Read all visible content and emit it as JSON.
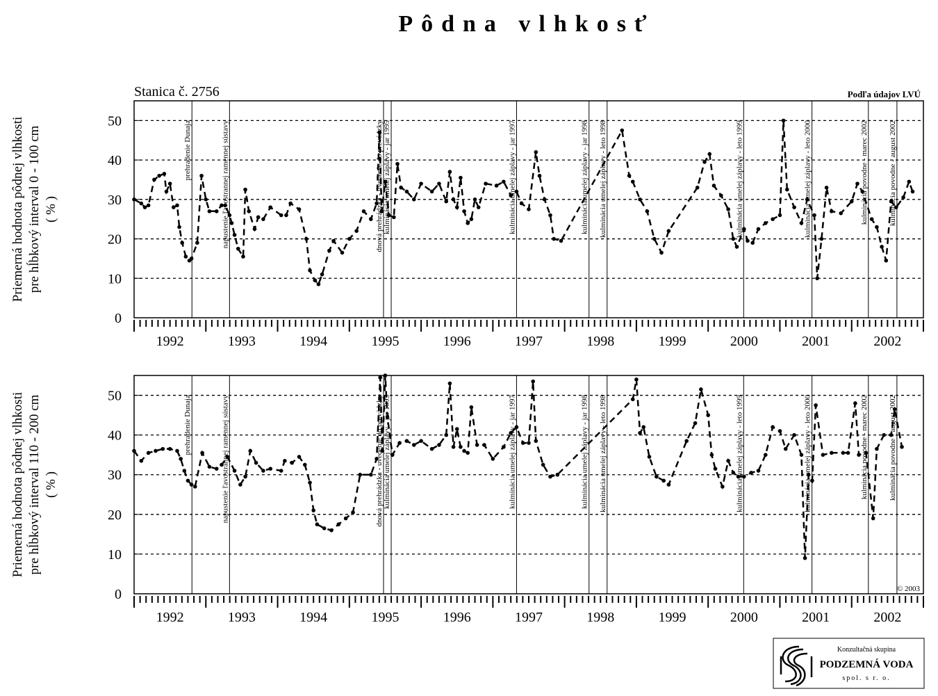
{
  "title": "Pôdna vlhkosť",
  "station": "Stanica č. 2756",
  "source": "Podľa údajov LVÚ",
  "copyright": "© 2003",
  "logo": {
    "line1": "Konzultačná skupina",
    "line2": "PODZEMNÁ VODA",
    "line3": "spol. s r. o."
  },
  "chart_data": [
    {
      "type": "line",
      "ylabel": [
        "Priemerná hodnota pôdnej vlhkosti",
        "pre hĺbkový interval 0 - 100 cm",
        "( % )"
      ],
      "xlim": [
        1992,
        2003
      ],
      "ylim": [
        0,
        55
      ],
      "yticks": [
        0,
        10,
        20,
        30,
        40,
        50
      ],
      "grid": true,
      "xticks": [
        {
          "value": 1992.5,
          "label": "1992"
        },
        {
          "value": 1993.5,
          "label": "1993"
        },
        {
          "value": 1994.5,
          "label": "1994"
        },
        {
          "value": 1995.5,
          "label": "1995"
        },
        {
          "value": 1996.5,
          "label": "1996"
        },
        {
          "value": 1997.5,
          "label": "1997"
        },
        {
          "value": 1998.5,
          "label": "1998"
        },
        {
          "value": 1999.5,
          "label": "1999"
        },
        {
          "value": 2000.5,
          "label": "2000"
        },
        {
          "value": 2001.5,
          "label": "2001"
        },
        {
          "value": 2002.5,
          "label": "2002"
        }
      ],
      "events": [
        {
          "x": 1992.806,
          "label": "prehradenie Dunaja"
        },
        {
          "x": 1993.33,
          "label": "napustenie ľavostrannej ramennej sústavy"
        },
        {
          "x": 1995.476,
          "label": "dnová prehrádzka - uvedenie do prevádzky"
        },
        {
          "x": 1995.583,
          "label": "kulminácia umelej záplavy - jar 1995"
        },
        {
          "x": 1997.33,
          "label": "kulminácia umelej záplavy - jar 1997"
        },
        {
          "x": 1998.34,
          "label": "kulminácia umelej záplavy - jar 1998"
        },
        {
          "x": 1998.592,
          "label": "kulminácia umelej záplavy - leto 1998"
        },
        {
          "x": 2000.495,
          "label": "kulminácia umelej záplavy - leto 1999"
        },
        {
          "x": 2001.447,
          "label": "kulminácia umelej záplavy - leto 2000"
        },
        {
          "x": 2002.233,
          "label": "kulminácia povodne - marec 2002"
        },
        {
          "x": 2002.631,
          "label": "kulminácia povodne - august 2002"
        }
      ],
      "series": [
        {
          "color": "#000000",
          "x": [
            1992.0,
            1992.1,
            1992.15,
            1992.2,
            1992.28,
            1992.35,
            1992.42,
            1992.45,
            1992.5,
            1992.55,
            1992.6,
            1992.63,
            1992.67,
            1992.72,
            1992.77,
            1992.8,
            1992.88,
            1992.94,
            1993.0,
            1993.05,
            1993.15,
            1993.22,
            1993.27,
            1993.33,
            1993.36,
            1993.4,
            1993.45,
            1993.52,
            1993.55,
            1993.6,
            1993.68,
            1993.73,
            1993.8,
            1993.9,
            1994.05,
            1994.12,
            1994.18,
            1994.3,
            1994.4,
            1994.45,
            1994.52,
            1994.57,
            1994.62,
            1994.72,
            1994.78,
            1994.9,
            1995.0,
            1995.1,
            1995.2,
            1995.3,
            1995.38,
            1995.42,
            1995.45,
            1995.5,
            1995.55,
            1995.62,
            1995.67,
            1995.72,
            1995.8,
            1995.9,
            1996.0,
            1996.15,
            1996.25,
            1996.35,
            1996.4,
            1996.45,
            1996.5,
            1996.55,
            1996.6,
            1996.65,
            1996.7,
            1996.75,
            1996.8,
            1996.9,
            1997.05,
            1997.15,
            1997.25,
            1997.33,
            1997.4,
            1997.5,
            1997.6,
            1997.65,
            1997.72,
            1997.8,
            1997.85,
            1997.95,
            1998.8,
            1998.9,
            1998.95,
            1999.05,
            1999.15,
            1999.25,
            1999.35,
            1999.45,
            1999.85,
            1999.95,
            2000.02,
            2000.08,
            2000.18,
            2000.28,
            2000.35,
            2000.4,
            2000.5,
            2000.55,
            2000.62,
            2000.7,
            2000.8,
            2000.9,
            2001.0,
            2001.05,
            2001.1,
            2001.2,
            2001.3,
            2001.38,
            2001.48,
            2001.52,
            2001.58,
            2001.65,
            2001.72,
            2001.85,
            2002.0,
            2002.08,
            2002.15,
            2002.28,
            2002.35,
            2002.42,
            2002.48,
            2002.55,
            2002.62,
            2002.72,
            2002.8,
            2002.85
          ],
          "values": [
            30,
            29,
            28,
            28.5,
            35,
            36,
            36.5,
            32,
            34,
            28,
            28.5,
            23,
            19,
            15.5,
            14.5,
            15,
            19,
            36,
            30,
            27,
            27,
            28.5,
            28.5,
            26,
            24,
            21,
            17.5,
            15.5,
            32.5,
            27,
            22.5,
            25.5,
            25,
            28,
            26,
            26,
            29,
            27.5,
            20,
            12,
            9.5,
            8.5,
            11,
            17,
            19.5,
            16.5,
            20,
            22,
            27,
            25,
            29,
            47,
            27,
            34.5,
            26,
            25.5,
            39,
            33,
            32,
            30,
            34,
            32,
            34,
            29.5,
            37,
            30,
            28,
            35.5,
            27,
            24,
            25,
            30,
            28,
            34,
            33.5,
            34.5,
            31,
            32,
            29,
            27.5,
            42,
            36,
            30,
            26,
            20,
            19.5,
            47.5,
            36,
            34.5,
            30,
            27,
            20,
            16.5,
            22,
            33,
            39.5,
            41.5,
            33.5,
            31,
            27.5,
            20,
            18,
            22.5,
            19.5,
            19,
            22.5,
            24,
            25,
            26,
            50,
            32.5,
            28,
            24,
            30,
            26,
            10,
            20,
            33,
            27,
            26.5,
            29.5,
            34,
            32,
            25,
            23,
            18,
            14.5,
            29.5,
            28,
            30.5,
            34.5,
            32
          ]
        }
      ]
    },
    {
      "type": "line",
      "ylabel": [
        "Priemerná hodnota pôdnej vlhkosti",
        "pre hĺbkový interval 110 - 200 cm",
        "( % )"
      ],
      "xlim": [
        1992,
        2003
      ],
      "ylim": [
        0,
        55
      ],
      "yticks": [
        0,
        10,
        20,
        30,
        40,
        50
      ],
      "grid": true,
      "xticks": [
        {
          "value": 1992.5,
          "label": "1992"
        },
        {
          "value": 1993.5,
          "label": "1993"
        },
        {
          "value": 1994.5,
          "label": "1994"
        },
        {
          "value": 1995.5,
          "label": "1995"
        },
        {
          "value": 1996.5,
          "label": "1996"
        },
        {
          "value": 1997.5,
          "label": "1997"
        },
        {
          "value": 1998.5,
          "label": "1998"
        },
        {
          "value": 1999.5,
          "label": "1999"
        },
        {
          "value": 2000.5,
          "label": "2000"
        },
        {
          "value": 2001.5,
          "label": "2001"
        },
        {
          "value": 2002.5,
          "label": "2002"
        }
      ],
      "events": [
        {
          "x": 1992.806,
          "label": "prehradenie Dunaja"
        },
        {
          "x": 1993.33,
          "label": "napustenie ľavostrannej ramennej sústavy"
        },
        {
          "x": 1995.476,
          "label": "dnová prehrádzka - uvedenie do prevádzky"
        },
        {
          "x": 1995.583,
          "label": "kulminácia umelej záplavy - jar 1995"
        },
        {
          "x": 1997.33,
          "label": "kulminácia umelej záplavy - jar 1997"
        },
        {
          "x": 1998.34,
          "label": "kulminácia umelej záplavy - jar 1998"
        },
        {
          "x": 1998.592,
          "label": "kulminácia umelej záplavy - leto 1998"
        },
        {
          "x": 2000.495,
          "label": "kulminácia umelej záplavy - leto 1999"
        },
        {
          "x": 2001.447,
          "label": "kulminácia umelej záplavy - leto 2000"
        },
        {
          "x": 2002.233,
          "label": "kulminácia povodne - marec 2002"
        },
        {
          "x": 2002.631,
          "label": "kulminácia povodne - august 2002"
        }
      ],
      "series": [
        {
          "color": "#000000",
          "x": [
            1992.0,
            1992.1,
            1992.2,
            1992.3,
            1992.4,
            1992.5,
            1992.6,
            1992.65,
            1992.7,
            1992.75,
            1992.8,
            1992.85,
            1992.95,
            1993.05,
            1993.15,
            1993.22,
            1993.3,
            1993.4,
            1993.48,
            1993.55,
            1993.62,
            1993.7,
            1993.8,
            1993.9,
            1994.05,
            1994.1,
            1994.2,
            1994.3,
            1994.38,
            1994.45,
            1994.5,
            1994.55,
            1994.65,
            1994.75,
            1994.85,
            1994.95,
            1995.05,
            1995.15,
            1995.3,
            1995.38,
            1995.43,
            1995.46,
            1995.5,
            1995.53,
            1995.6,
            1995.7,
            1995.8,
            1995.9,
            1996.0,
            1996.15,
            1996.25,
            1996.35,
            1996.4,
            1996.45,
            1996.5,
            1996.55,
            1996.6,
            1996.65,
            1996.7,
            1996.78,
            1996.88,
            1997.0,
            1997.15,
            1997.25,
            1997.33,
            1997.42,
            1997.5,
            1997.56,
            1997.6,
            1997.7,
            1997.8,
            1997.9,
            1998.95,
            1999.0,
            1999.05,
            1999.1,
            1999.18,
            1999.28,
            1999.38,
            1999.45,
            1999.7,
            1999.82,
            1999.9,
            2000.0,
            2000.05,
            2000.1,
            2000.2,
            2000.28,
            2000.35,
            2000.42,
            2000.5,
            2000.6,
            2000.7,
            2000.8,
            2000.9,
            2001.0,
            2001.08,
            2001.2,
            2001.3,
            2001.35,
            2001.4,
            2001.45,
            2001.5,
            2001.6,
            2001.72,
            2001.88,
            2001.95,
            2002.05,
            2002.1,
            2002.2,
            2002.3,
            2002.35,
            2002.45,
            2002.55,
            2002.6,
            2002.7
          ],
          "values": [
            36,
            33.5,
            35.5,
            36,
            36.5,
            36.5,
            36,
            34,
            31,
            28.5,
            27.5,
            27,
            35.5,
            32,
            31.5,
            32.5,
            34.5,
            31,
            27.5,
            29.5,
            36,
            33,
            31,
            31.5,
            31,
            33.5,
            33,
            34.5,
            32.5,
            28,
            21,
            17.5,
            16.5,
            16,
            17.5,
            19,
            20.5,
            30,
            30,
            34,
            54.5,
            36,
            55,
            44.5,
            35,
            38,
            38.5,
            37.5,
            38.5,
            36.5,
            37.5,
            40,
            53,
            37,
            41.5,
            37,
            36,
            35.5,
            47,
            37.5,
            37.5,
            34,
            37,
            40.5,
            42,
            38,
            38,
            53.5,
            38.5,
            32.5,
            29.5,
            30,
            49,
            54,
            40.5,
            42,
            34.5,
            29.5,
            28.5,
            27.5,
            38.5,
            43,
            51.5,
            45,
            35,
            31.5,
            27,
            33.5,
            30.5,
            29.5,
            29.5,
            30.5,
            31,
            35,
            42,
            41,
            36.5,
            40,
            35,
            9,
            30,
            28.5,
            47.5,
            35,
            35.5,
            35.5,
            35.5,
            48,
            35,
            35.5,
            19,
            36.5,
            40,
            40,
            46.5,
            37
          ]
        }
      ]
    }
  ]
}
